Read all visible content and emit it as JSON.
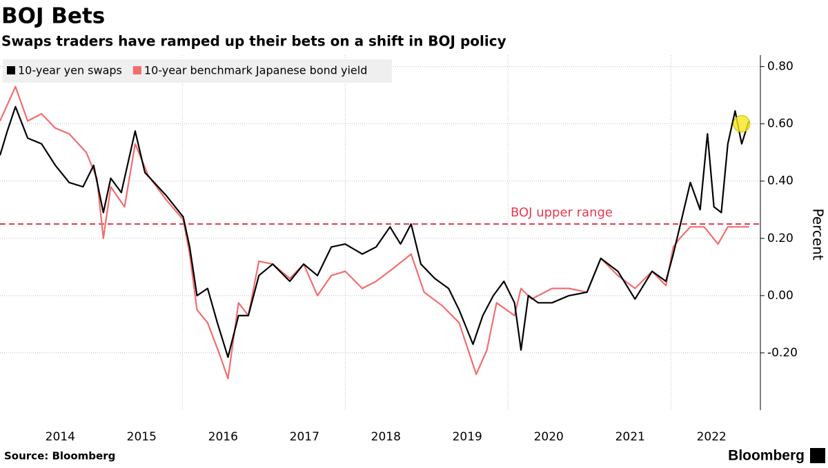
{
  "chart_data": {
    "type": "line",
    "title": "BOJ Bets",
    "subtitle": "Swaps traders have ramped up their bets on a shift in BOJ policy",
    "y_label": "Percent",
    "source": "Source: Bloomberg",
    "brand": "Bloomberg",
    "xlim": [
      2013.76,
      2023.1
    ],
    "xticks": [
      {
        "value": 2014.5,
        "label": "2014"
      },
      {
        "value": 2015.5,
        "label": "2015"
      },
      {
        "value": 2016.5,
        "label": "2016"
      },
      {
        "value": 2017.5,
        "label": "2017"
      },
      {
        "value": 2018.5,
        "label": "2018"
      },
      {
        "value": 2019.5,
        "label": "2019"
      },
      {
        "value": 2020.5,
        "label": "2020"
      },
      {
        "value": 2021.5,
        "label": "2021"
      },
      {
        "value": 2022.5,
        "label": "2022"
      }
    ],
    "xgrid": [
      2016,
      2018,
      2020,
      2022
    ],
    "ylim": [
      -0.4,
      0.84
    ],
    "yticks": [
      {
        "value": -0.2,
        "label": "-0.20"
      },
      {
        "value": 0,
        "label": "0.00"
      },
      {
        "value": 0.2,
        "label": "0.20"
      },
      {
        "value": 0.4,
        "label": "0.40"
      },
      {
        "value": 0.6,
        "label": "0.60"
      },
      {
        "value": 0.8,
        "label": "0.80"
      }
    ],
    "grid": true,
    "reference_line": {
      "value": 0.25,
      "label": "BOJ upper range",
      "color": "#e8384f"
    },
    "highlight": {
      "x": 2022.87,
      "y": 0.6,
      "color": "#f5e71c"
    },
    "series": [
      {
        "name": "10-year yen swaps",
        "color": "#000000",
        "x": [
          2013.76,
          2013.85,
          2013.95,
          2014.1,
          2014.27,
          2014.44,
          2014.61,
          2014.78,
          2014.91,
          2015.03,
          2015.12,
          2015.25,
          2015.42,
          2015.54,
          2015.8,
          2016.01,
          2016.09,
          2016.18,
          2016.31,
          2016.43,
          2016.56,
          2016.69,
          2016.81,
          2016.94,
          2017.11,
          2017.32,
          2017.49,
          2017.66,
          2017.83,
          2018.0,
          2018.21,
          2018.38,
          2018.55,
          2018.68,
          2018.81,
          2018.93,
          2019.1,
          2019.27,
          2019.4,
          2019.57,
          2019.69,
          2019.82,
          2019.95,
          2020.08,
          2020.16,
          2020.25,
          2020.37,
          2020.54,
          2020.75,
          2020.97,
          2021.14,
          2021.35,
          2021.56,
          2021.77,
          2021.94,
          2022.03,
          2022.11,
          2022.24,
          2022.36,
          2022.45,
          2022.53,
          2022.62,
          2022.7,
          2022.79,
          2022.87,
          2022.96
        ],
        "values": [
          0.49,
          0.575,
          0.66,
          0.55,
          0.53,
          0.455,
          0.395,
          0.38,
          0.455,
          0.29,
          0.41,
          0.36,
          0.575,
          0.43,
          0.35,
          0.275,
          0.17,
          0.0,
          0.025,
          -0.095,
          -0.215,
          -0.07,
          -0.07,
          0.07,
          0.11,
          0.05,
          0.11,
          0.07,
          0.17,
          0.18,
          0.145,
          0.17,
          0.24,
          0.18,
          0.25,
          0.11,
          0.06,
          0.025,
          -0.05,
          -0.17,
          -0.07,
          0.0,
          0.05,
          -0.025,
          -0.19,
          0.0,
          -0.025,
          -0.025,
          0.0,
          0.012,
          0.13,
          0.085,
          -0.012,
          0.085,
          0.05,
          0.145,
          0.24,
          0.395,
          0.3,
          0.565,
          0.31,
          0.29,
          0.53,
          0.645,
          0.53,
          0.61
        ]
      },
      {
        "name": "10-year benchmark Japanese bond yield",
        "color": "#f26d6d",
        "x": [
          2013.76,
          2013.95,
          2014.1,
          2014.27,
          2014.44,
          2014.61,
          2014.82,
          2014.95,
          2015.03,
          2015.12,
          2015.29,
          2015.42,
          2015.58,
          2015.8,
          2016.01,
          2016.09,
          2016.18,
          2016.31,
          2016.47,
          2016.56,
          2016.69,
          2016.81,
          2016.94,
          2017.11,
          2017.32,
          2017.49,
          2017.66,
          2017.83,
          2018.0,
          2018.21,
          2018.38,
          2018.59,
          2018.81,
          2018.97,
          2019.19,
          2019.4,
          2019.61,
          2019.74,
          2019.86,
          2020.08,
          2020.16,
          2020.29,
          2020.54,
          2020.75,
          2020.97,
          2021.14,
          2021.35,
          2021.56,
          2021.77,
          2021.94,
          2022.03,
          2022.11,
          2022.24,
          2022.41,
          2022.58,
          2022.7,
          2022.96
        ],
        "values": [
          0.61,
          0.73,
          0.61,
          0.635,
          0.585,
          0.565,
          0.5,
          0.41,
          0.2,
          0.38,
          0.31,
          0.53,
          0.42,
          0.335,
          0.265,
          0.145,
          -0.05,
          -0.095,
          -0.215,
          -0.29,
          -0.025,
          -0.07,
          0.12,
          0.11,
          0.06,
          0.11,
          0.0,
          0.07,
          0.085,
          0.025,
          0.05,
          0.095,
          0.145,
          0.012,
          -0.035,
          -0.095,
          -0.275,
          -0.19,
          -0.025,
          -0.07,
          0.025,
          -0.012,
          0.025,
          0.025,
          0.012,
          0.13,
          0.07,
          0.025,
          0.085,
          0.035,
          0.17,
          0.2,
          0.24,
          0.24,
          0.18,
          0.24,
          0.24
        ]
      }
    ]
  }
}
